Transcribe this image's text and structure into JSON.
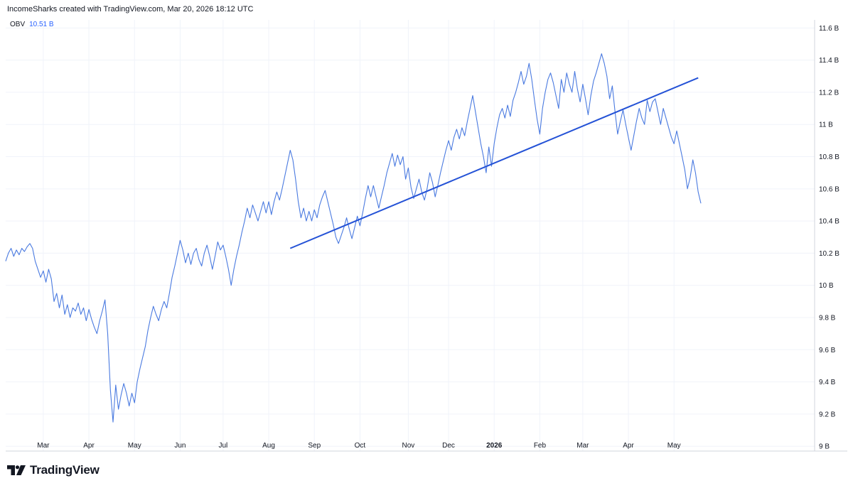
{
  "header": {
    "credit": "IncomeSharks created with TradingView.com, Mar 20, 2026 18:12 UTC"
  },
  "legend": {
    "name": "OBV",
    "value": "10.51 B"
  },
  "brand": {
    "name": "TradingView"
  },
  "colors": {
    "line": "#4a7ae0",
    "trendline": "#2452d6",
    "grid": "#f0f3fa",
    "axis": "#d1d4dc"
  },
  "chart_data": {
    "type": "line",
    "title": "OBV",
    "ylabel": "",
    "xlabel": "",
    "ylim": [
      8.97,
      11.65
    ],
    "xlim": [
      0,
      270
    ],
    "y_ticks": [
      {
        "value": 9.0,
        "label": "9 B"
      },
      {
        "value": 9.2,
        "label": "9.2 B"
      },
      {
        "value": 9.4,
        "label": "9.4 B"
      },
      {
        "value": 9.6,
        "label": "9.6 B"
      },
      {
        "value": 9.8,
        "label": "9.8 B"
      },
      {
        "value": 10.0,
        "label": "10 B"
      },
      {
        "value": 10.2,
        "label": "10.2 B"
      },
      {
        "value": 10.4,
        "label": "10.4 B"
      },
      {
        "value": 10.6,
        "label": "10.6 B"
      },
      {
        "value": 10.8,
        "label": "10.8 B"
      },
      {
        "value": 11.0,
        "label": "11 B"
      },
      {
        "value": 11.2,
        "label": "11.2 B"
      },
      {
        "value": 11.4,
        "label": "11.4 B"
      },
      {
        "value": 11.6,
        "label": "11.6 B"
      }
    ],
    "x_ticks": [
      {
        "x": 14,
        "label": "Mar",
        "bold": false
      },
      {
        "x": 31,
        "label": "Apr",
        "bold": false
      },
      {
        "x": 48,
        "label": "May",
        "bold": false
      },
      {
        "x": 65,
        "label": "Jun",
        "bold": false
      },
      {
        "x": 81,
        "label": "Jul",
        "bold": false
      },
      {
        "x": 98,
        "label": "Aug",
        "bold": false
      },
      {
        "x": 115,
        "label": "Sep",
        "bold": false
      },
      {
        "x": 132,
        "label": "Oct",
        "bold": false
      },
      {
        "x": 150,
        "label": "Nov",
        "bold": false
      },
      {
        "x": 165,
        "label": "Dec",
        "bold": false
      },
      {
        "x": 182,
        "label": "2026",
        "bold": true
      },
      {
        "x": 199,
        "label": "Feb",
        "bold": false
      },
      {
        "x": 215,
        "label": "Mar",
        "bold": false
      },
      {
        "x": 232,
        "label": "Apr",
        "bold": false
      },
      {
        "x": 249,
        "label": "May",
        "bold": false
      }
    ],
    "series": [
      {
        "name": "OBV",
        "points": [
          [
            0,
            10.15
          ],
          [
            1,
            10.2
          ],
          [
            2,
            10.23
          ],
          [
            3,
            10.18
          ],
          [
            4,
            10.22
          ],
          [
            5,
            10.19
          ],
          [
            6,
            10.23
          ],
          [
            7,
            10.21
          ],
          [
            8,
            10.24
          ],
          [
            9,
            10.26
          ],
          [
            10,
            10.23
          ],
          [
            11,
            10.15
          ],
          [
            12,
            10.1
          ],
          [
            13,
            10.05
          ],
          [
            14,
            10.09
          ],
          [
            15,
            10.02
          ],
          [
            16,
            10.1
          ],
          [
            17,
            10.04
          ],
          [
            18,
            9.9
          ],
          [
            19,
            9.95
          ],
          [
            20,
            9.86
          ],
          [
            21,
            9.94
          ],
          [
            22,
            9.82
          ],
          [
            23,
            9.88
          ],
          [
            24,
            9.8
          ],
          [
            25,
            9.86
          ],
          [
            26,
            9.84
          ],
          [
            27,
            9.89
          ],
          [
            28,
            9.82
          ],
          [
            29,
            9.86
          ],
          [
            30,
            9.78
          ],
          [
            31,
            9.85
          ],
          [
            32,
            9.79
          ],
          [
            33,
            9.74
          ],
          [
            34,
            9.7
          ],
          [
            35,
            9.78
          ],
          [
            36,
            9.84
          ],
          [
            37,
            9.91
          ],
          [
            38,
            9.7
          ],
          [
            39,
            9.35
          ],
          [
            40,
            9.15
          ],
          [
            41,
            9.38
          ],
          [
            42,
            9.23
          ],
          [
            43,
            9.32
          ],
          [
            44,
            9.39
          ],
          [
            45,
            9.33
          ],
          [
            46,
            9.25
          ],
          [
            47,
            9.33
          ],
          [
            48,
            9.27
          ],
          [
            49,
            9.4
          ],
          [
            50,
            9.48
          ],
          [
            51,
            9.55
          ],
          [
            52,
            9.62
          ],
          [
            53,
            9.72
          ],
          [
            54,
            9.8
          ],
          [
            55,
            9.87
          ],
          [
            56,
            9.82
          ],
          [
            57,
            9.78
          ],
          [
            58,
            9.85
          ],
          [
            59,
            9.9
          ],
          [
            60,
            9.86
          ],
          [
            61,
            9.95
          ],
          [
            62,
            10.05
          ],
          [
            63,
            10.12
          ],
          [
            64,
            10.2
          ],
          [
            65,
            10.28
          ],
          [
            66,
            10.22
          ],
          [
            67,
            10.14
          ],
          [
            68,
            10.2
          ],
          [
            69,
            10.13
          ],
          [
            70,
            10.2
          ],
          [
            71,
            10.23
          ],
          [
            72,
            10.16
          ],
          [
            73,
            10.12
          ],
          [
            74,
            10.2
          ],
          [
            75,
            10.25
          ],
          [
            76,
            10.18
          ],
          [
            77,
            10.1
          ],
          [
            78,
            10.18
          ],
          [
            79,
            10.27
          ],
          [
            80,
            10.22
          ],
          [
            81,
            10.25
          ],
          [
            82,
            10.18
          ],
          [
            83,
            10.1
          ],
          [
            84,
            10.0
          ],
          [
            85,
            10.1
          ],
          [
            86,
            10.18
          ],
          [
            87,
            10.25
          ],
          [
            88,
            10.33
          ],
          [
            89,
            10.4
          ],
          [
            90,
            10.48
          ],
          [
            91,
            10.42
          ],
          [
            92,
            10.5
          ],
          [
            93,
            10.45
          ],
          [
            94,
            10.4
          ],
          [
            95,
            10.46
          ],
          [
            96,
            10.52
          ],
          [
            97,
            10.45
          ],
          [
            98,
            10.52
          ],
          [
            99,
            10.44
          ],
          [
            100,
            10.52
          ],
          [
            101,
            10.58
          ],
          [
            102,
            10.53
          ],
          [
            103,
            10.6
          ],
          [
            104,
            10.68
          ],
          [
            105,
            10.76
          ],
          [
            106,
            10.84
          ],
          [
            107,
            10.78
          ],
          [
            108,
            10.66
          ],
          [
            109,
            10.52
          ],
          [
            110,
            10.42
          ],
          [
            111,
            10.48
          ],
          [
            112,
            10.4
          ],
          [
            113,
            10.46
          ],
          [
            114,
            10.4
          ],
          [
            115,
            10.47
          ],
          [
            116,
            10.42
          ],
          [
            117,
            10.5
          ],
          [
            118,
            10.55
          ],
          [
            119,
            10.59
          ],
          [
            120,
            10.52
          ],
          [
            121,
            10.45
          ],
          [
            122,
            10.38
          ],
          [
            123,
            10.3
          ],
          [
            124,
            10.26
          ],
          [
            125,
            10.31
          ],
          [
            126,
            10.36
          ],
          [
            127,
            10.42
          ],
          [
            128,
            10.35
          ],
          [
            129,
            10.29
          ],
          [
            130,
            10.36
          ],
          [
            131,
            10.43
          ],
          [
            132,
            10.37
          ],
          [
            133,
            10.45
          ],
          [
            134,
            10.54
          ],
          [
            135,
            10.62
          ],
          [
            136,
            10.55
          ],
          [
            137,
            10.62
          ],
          [
            138,
            10.55
          ],
          [
            139,
            10.48
          ],
          [
            140,
            10.55
          ],
          [
            141,
            10.62
          ],
          [
            142,
            10.7
          ],
          [
            143,
            10.76
          ],
          [
            144,
            10.82
          ],
          [
            145,
            10.74
          ],
          [
            146,
            10.81
          ],
          [
            147,
            10.75
          ],
          [
            148,
            10.8
          ],
          [
            149,
            10.66
          ],
          [
            150,
            10.73
          ],
          [
            151,
            10.61
          ],
          [
            152,
            10.54
          ],
          [
            153,
            10.6
          ],
          [
            154,
            10.66
          ],
          [
            155,
            10.58
          ],
          [
            156,
            10.53
          ],
          [
            157,
            10.6
          ],
          [
            158,
            10.7
          ],
          [
            159,
            10.64
          ],
          [
            160,
            10.55
          ],
          [
            161,
            10.62
          ],
          [
            162,
            10.7
          ],
          [
            163,
            10.77
          ],
          [
            164,
            10.84
          ],
          [
            165,
            10.9
          ],
          [
            166,
            10.84
          ],
          [
            167,
            10.92
          ],
          [
            168,
            10.97
          ],
          [
            169,
            10.91
          ],
          [
            170,
            10.98
          ],
          [
            171,
            10.93
          ],
          [
            172,
            11.02
          ],
          [
            173,
            11.1
          ],
          [
            174,
            11.18
          ],
          [
            175,
            11.08
          ],
          [
            176,
            10.98
          ],
          [
            177,
            10.88
          ],
          [
            178,
            10.8
          ],
          [
            179,
            10.7
          ],
          [
            180,
            10.86
          ],
          [
            181,
            10.74
          ],
          [
            182,
            10.88
          ],
          [
            183,
            10.98
          ],
          [
            184,
            11.06
          ],
          [
            185,
            11.1
          ],
          [
            186,
            11.04
          ],
          [
            187,
            11.12
          ],
          [
            188,
            11.05
          ],
          [
            189,
            11.15
          ],
          [
            190,
            11.2
          ],
          [
            191,
            11.26
          ],
          [
            192,
            11.33
          ],
          [
            193,
            11.25
          ],
          [
            194,
            11.3
          ],
          [
            195,
            11.38
          ],
          [
            196,
            11.28
          ],
          [
            197,
            11.15
          ],
          [
            198,
            11.03
          ],
          [
            199,
            10.94
          ],
          [
            200,
            11.1
          ],
          [
            201,
            11.2
          ],
          [
            202,
            11.28
          ],
          [
            203,
            11.32
          ],
          [
            204,
            11.26
          ],
          [
            205,
            11.18
          ],
          [
            206,
            11.1
          ],
          [
            207,
            11.28
          ],
          [
            208,
            11.2
          ],
          [
            209,
            11.32
          ],
          [
            210,
            11.25
          ],
          [
            211,
            11.2
          ],
          [
            212,
            11.33
          ],
          [
            213,
            11.22
          ],
          [
            214,
            11.14
          ],
          [
            215,
            11.25
          ],
          [
            216,
            11.16
          ],
          [
            217,
            11.06
          ],
          [
            218,
            11.18
          ],
          [
            219,
            11.27
          ],
          [
            220,
            11.32
          ],
          [
            221,
            11.38
          ],
          [
            222,
            11.44
          ],
          [
            223,
            11.38
          ],
          [
            224,
            11.3
          ],
          [
            225,
            11.16
          ],
          [
            226,
            11.24
          ],
          [
            227,
            11.08
          ],
          [
            228,
            10.94
          ],
          [
            229,
            11.02
          ],
          [
            230,
            11.09
          ],
          [
            231,
            11.0
          ],
          [
            232,
            10.92
          ],
          [
            233,
            10.84
          ],
          [
            234,
            10.93
          ],
          [
            235,
            11.02
          ],
          [
            236,
            11.1
          ],
          [
            237,
            11.04
          ],
          [
            238,
            11.0
          ],
          [
            239,
            11.15
          ],
          [
            240,
            11.08
          ],
          [
            241,
            11.14
          ],
          [
            242,
            11.16
          ],
          [
            243,
            11.08
          ],
          [
            244,
            11.0
          ],
          [
            245,
            11.1
          ],
          [
            246,
            11.04
          ],
          [
            247,
            10.98
          ],
          [
            248,
            10.92
          ],
          [
            249,
            10.88
          ],
          [
            250,
            10.96
          ],
          [
            251,
            10.88
          ],
          [
            252,
            10.8
          ],
          [
            253,
            10.72
          ],
          [
            254,
            10.6
          ],
          [
            255,
            10.67
          ],
          [
            256,
            10.78
          ],
          [
            257,
            10.7
          ],
          [
            258,
            10.58
          ],
          [
            259,
            10.51
          ]
        ]
      }
    ],
    "annotations": [
      {
        "type": "trendline",
        "from": [
          106,
          10.23
        ],
        "to": [
          258,
          11.29
        ]
      }
    ]
  }
}
